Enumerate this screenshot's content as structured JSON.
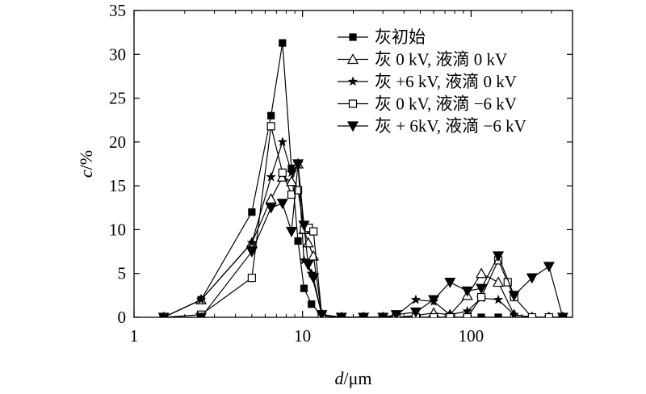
{
  "chart_data": {
    "type": "line",
    "xscale": "log",
    "xlim": [
      1,
      400
    ],
    "ylim": [
      0,
      35
    ],
    "xlabel": {
      "var": "d",
      "unit": "/μm"
    },
    "ylabel": {
      "var": "c",
      "unit": "/%"
    },
    "x_ticks": [
      {
        "value": 1,
        "label": "1"
      },
      {
        "value": 10,
        "label": "10"
      },
      {
        "value": 100,
        "label": "100"
      }
    ],
    "y_ticks": [
      {
        "value": 0,
        "label": "0"
      },
      {
        "value": 5,
        "label": "5"
      },
      {
        "value": 10,
        "label": "10"
      },
      {
        "value": 15,
        "label": "15"
      },
      {
        "value": 20,
        "label": "20"
      },
      {
        "value": 25,
        "label": "25"
      },
      {
        "value": 30,
        "label": "30"
      },
      {
        "value": 35,
        "label": "35"
      }
    ],
    "legend_position": "top-right",
    "grid": false,
    "series": [
      {
        "name": "灰初始",
        "marker": "square-filled",
        "x": [
          1.5,
          2.5,
          5,
          6.5,
          7.6,
          8.6,
          9.4,
          10.2,
          11.3,
          13,
          17,
          23,
          30,
          36,
          47,
          60,
          75,
          95,
          115,
          145,
          180,
          230,
          290,
          350
        ],
        "y": [
          0,
          2,
          12,
          23,
          31.3,
          17,
          8.7,
          3.3,
          1.5,
          0.2,
          0,
          0,
          0,
          0,
          0,
          0,
          0,
          0,
          0,
          0,
          0,
          0,
          0,
          0
        ]
      },
      {
        "name": "灰 0 kV, 液滴 0 kV",
        "marker": "triangle-open",
        "x": [
          1.5,
          2.5,
          5,
          6.5,
          7.6,
          8.6,
          9.4,
          10.2,
          10.8,
          11.6,
          13,
          17,
          23,
          30,
          36,
          47,
          60,
          75,
          95,
          115,
          145,
          180,
          230,
          290,
          350
        ],
        "y": [
          0,
          2,
          8.5,
          13.5,
          16,
          15.5,
          17.5,
          10,
          8.5,
          7,
          0.3,
          0,
          0,
          0,
          0,
          0.2,
          0.5,
          0.3,
          2.5,
          5,
          4,
          0.3,
          0,
          0,
          0
        ]
      },
      {
        "name": "灰 +6 kV, 液滴 0 kV",
        "marker": "star-filled",
        "x": [
          1.5,
          2.5,
          5,
          6.5,
          7.6,
          8.6,
          9.4,
          10.2,
          11.3,
          13,
          17,
          23,
          30,
          36,
          47,
          60,
          75,
          95,
          115,
          145,
          180,
          230,
          290,
          350
        ],
        "y": [
          0,
          2,
          8.5,
          16,
          20,
          16.5,
          17.5,
          6.5,
          5,
          0.3,
          0,
          0,
          0,
          0.2,
          2,
          1.8,
          0.3,
          0.7,
          2.2,
          2,
          0.3,
          0,
          0,
          0
        ]
      },
      {
        "name": "灰 0 kV, 液滴 −6 kV",
        "marker": "square-open",
        "x": [
          1.5,
          2.5,
          5,
          6.5,
          7.6,
          8.6,
          9.4,
          10.2,
          10.9,
          11.6,
          13,
          17,
          23,
          30,
          36,
          47,
          60,
          75,
          95,
          115,
          145,
          165,
          180,
          230,
          290,
          350
        ],
        "y": [
          0,
          0.3,
          4.5,
          21.8,
          16.5,
          14,
          14.5,
          10,
          10.2,
          9.8,
          0.3,
          0,
          0,
          0,
          0,
          0,
          0,
          0,
          0,
          2.3,
          6.5,
          4,
          2.3,
          0,
          0,
          0
        ]
      },
      {
        "name": "灰 + 6kV, 液滴 −6 kV",
        "marker": "triangle-down-filled",
        "x": [
          1.5,
          2.5,
          5,
          6.5,
          7.6,
          8.6,
          9.4,
          10.2,
          10.8,
          11.6,
          13,
          17,
          23,
          30,
          36,
          47,
          60,
          75,
          95,
          115,
          145,
          180,
          230,
          290,
          350
        ],
        "y": [
          0,
          0,
          7.5,
          12.5,
          13,
          9.8,
          17.5,
          10.5,
          6,
          4.5,
          0.3,
          0,
          0,
          0,
          0.3,
          0.6,
          2,
          4,
          3,
          3.3,
          7,
          2.5,
          4.5,
          5.8,
          0
        ]
      }
    ]
  }
}
